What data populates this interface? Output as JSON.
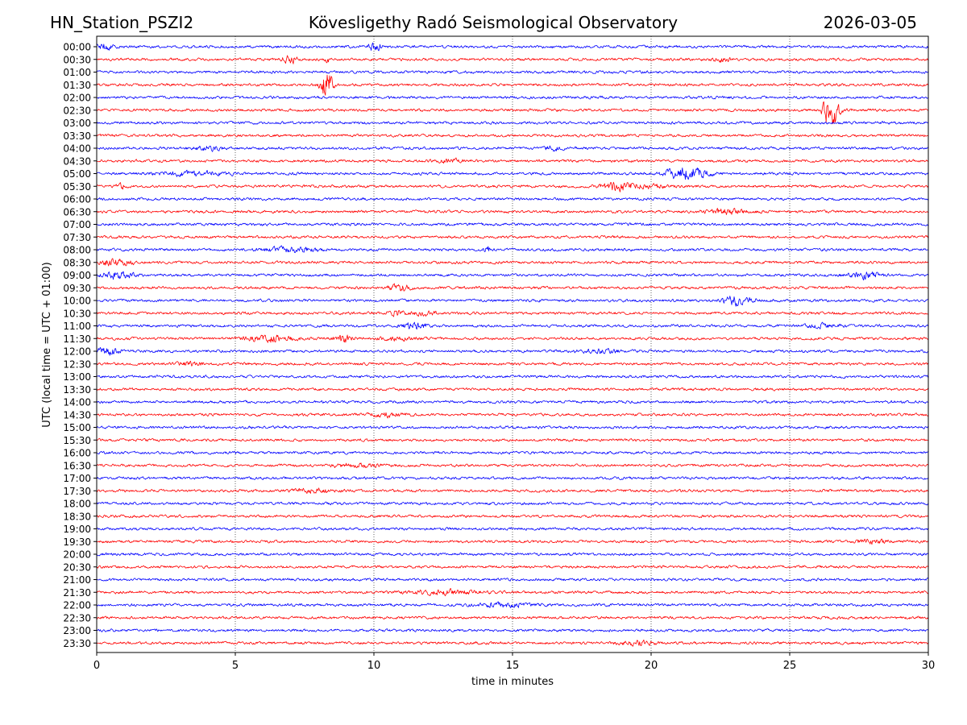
{
  "header": {
    "station": "HN_Station_PSZI2",
    "observatory": "Kövesligethy Radó Seismological Observatory",
    "date": "2026-03-05"
  },
  "colors": {
    "trace_a": "#0000ff",
    "trace_b": "#ff0000",
    "axis": "#000000",
    "grid": "#000000"
  },
  "chart_data": {
    "type": "line",
    "title": "Kövesligethy Radó Seismological Observatory",
    "xlabel": "time in minutes",
    "ylabel": "UTC (local time = UTC + 01:00)",
    "xlim": [
      0,
      30
    ],
    "x_ticks": [
      0,
      5,
      10,
      15,
      20,
      25,
      30
    ],
    "x_tick_labels": [
      "0",
      "5",
      "10",
      "15",
      "20",
      "25",
      "30"
    ],
    "grid": "vertical dotted lines at 5-minute intervals",
    "row_labels": [
      "00:00",
      "00:30",
      "01:00",
      "01:30",
      "02:00",
      "02:30",
      "03:00",
      "03:30",
      "04:00",
      "04:30",
      "05:00",
      "05:30",
      "06:00",
      "06:30",
      "07:00",
      "07:30",
      "08:00",
      "08:30",
      "09:00",
      "09:30",
      "10:00",
      "10:30",
      "11:00",
      "11:30",
      "12:00",
      "12:30",
      "13:00",
      "13:30",
      "14:00",
      "14:30",
      "15:00",
      "15:30",
      "16:00",
      "16:30",
      "17:00",
      "17:30",
      "18:00",
      "18:30",
      "19:00",
      "19:30",
      "20:00",
      "20:30",
      "21:00",
      "21:30",
      "22:00",
      "22:30",
      "23:00",
      "23:30"
    ],
    "row_colors": "alternating blue (on the hour) and red (on the half hour)",
    "noise_level": 1.0,
    "events": [
      {
        "row": 0,
        "t": 0.3,
        "amp": 2.2,
        "dur": 0.3
      },
      {
        "row": 0,
        "t": 10.0,
        "amp": 3.0,
        "dur": 0.25
      },
      {
        "row": 1,
        "t": 7.0,
        "amp": 2.5,
        "dur": 0.3
      },
      {
        "row": 1,
        "t": 8.3,
        "amp": 2.0,
        "dur": 0.1
      },
      {
        "row": 1,
        "t": 22.6,
        "amp": 1.5,
        "dur": 0.3
      },
      {
        "row": 3,
        "t": 8.3,
        "amp": 12.0,
        "dur": 0.2
      },
      {
        "row": 5,
        "t": 26.5,
        "amp": 12.0,
        "dur": 0.3
      },
      {
        "row": 8,
        "t": 4.0,
        "amp": 1.3,
        "dur": 0.6
      },
      {
        "row": 8,
        "t": 16.5,
        "amp": 1.3,
        "dur": 0.4
      },
      {
        "row": 9,
        "t": 12.7,
        "amp": 1.3,
        "dur": 0.5
      },
      {
        "row": 10,
        "t": 3.5,
        "amp": 1.5,
        "dur": 1.2
      },
      {
        "row": 10,
        "t": 21.3,
        "amp": 5.0,
        "dur": 0.7
      },
      {
        "row": 11,
        "t": 0.9,
        "amp": 1.4,
        "dur": 0.2
      },
      {
        "row": 11,
        "t": 18.8,
        "amp": 2.8,
        "dur": 0.6
      },
      {
        "row": 11,
        "t": 20.0,
        "amp": 1.3,
        "dur": 0.6
      },
      {
        "row": 13,
        "t": 22.7,
        "amp": 1.8,
        "dur": 0.7
      },
      {
        "row": 16,
        "t": 7.0,
        "amp": 1.8,
        "dur": 1.0
      },
      {
        "row": 16,
        "t": 14.1,
        "amp": 2.5,
        "dur": 0.1
      },
      {
        "row": 17,
        "t": 0.7,
        "amp": 2.2,
        "dur": 0.6
      },
      {
        "row": 18,
        "t": 0.7,
        "amp": 2.5,
        "dur": 0.6
      },
      {
        "row": 18,
        "t": 27.7,
        "amp": 2.2,
        "dur": 0.6
      },
      {
        "row": 19,
        "t": 10.9,
        "amp": 2.2,
        "dur": 0.4
      },
      {
        "row": 20,
        "t": 23.1,
        "amp": 3.5,
        "dur": 0.5
      },
      {
        "row": 21,
        "t": 10.8,
        "amp": 2.0,
        "dur": 0.3
      },
      {
        "row": 21,
        "t": 11.8,
        "amp": 1.5,
        "dur": 0.4
      },
      {
        "row": 22,
        "t": 11.5,
        "amp": 2.0,
        "dur": 0.5
      },
      {
        "row": 22,
        "t": 26.2,
        "amp": 1.4,
        "dur": 0.6
      },
      {
        "row": 23,
        "t": 6.3,
        "amp": 2.5,
        "dur": 0.8
      },
      {
        "row": 23,
        "t": 8.9,
        "amp": 3.0,
        "dur": 0.3
      },
      {
        "row": 23,
        "t": 10.8,
        "amp": 1.5,
        "dur": 0.5
      },
      {
        "row": 24,
        "t": 0.4,
        "amp": 2.8,
        "dur": 0.4
      },
      {
        "row": 24,
        "t": 18.2,
        "amp": 1.3,
        "dur": 0.8
      },
      {
        "row": 25,
        "t": 3.4,
        "amp": 1.3,
        "dur": 0.5
      },
      {
        "row": 29,
        "t": 10.5,
        "amp": 1.3,
        "dur": 0.6
      },
      {
        "row": 33,
        "t": 9.3,
        "amp": 1.3,
        "dur": 0.8
      },
      {
        "row": 35,
        "t": 8.0,
        "amp": 1.3,
        "dur": 0.8
      },
      {
        "row": 39,
        "t": 28.0,
        "amp": 1.3,
        "dur": 0.6
      },
      {
        "row": 43,
        "t": 12.5,
        "amp": 1.4,
        "dur": 1.2
      },
      {
        "row": 44,
        "t": 14.8,
        "amp": 1.4,
        "dur": 1.0
      },
      {
        "row": 47,
        "t": 19.5,
        "amp": 1.4,
        "dur": 0.6
      }
    ]
  }
}
